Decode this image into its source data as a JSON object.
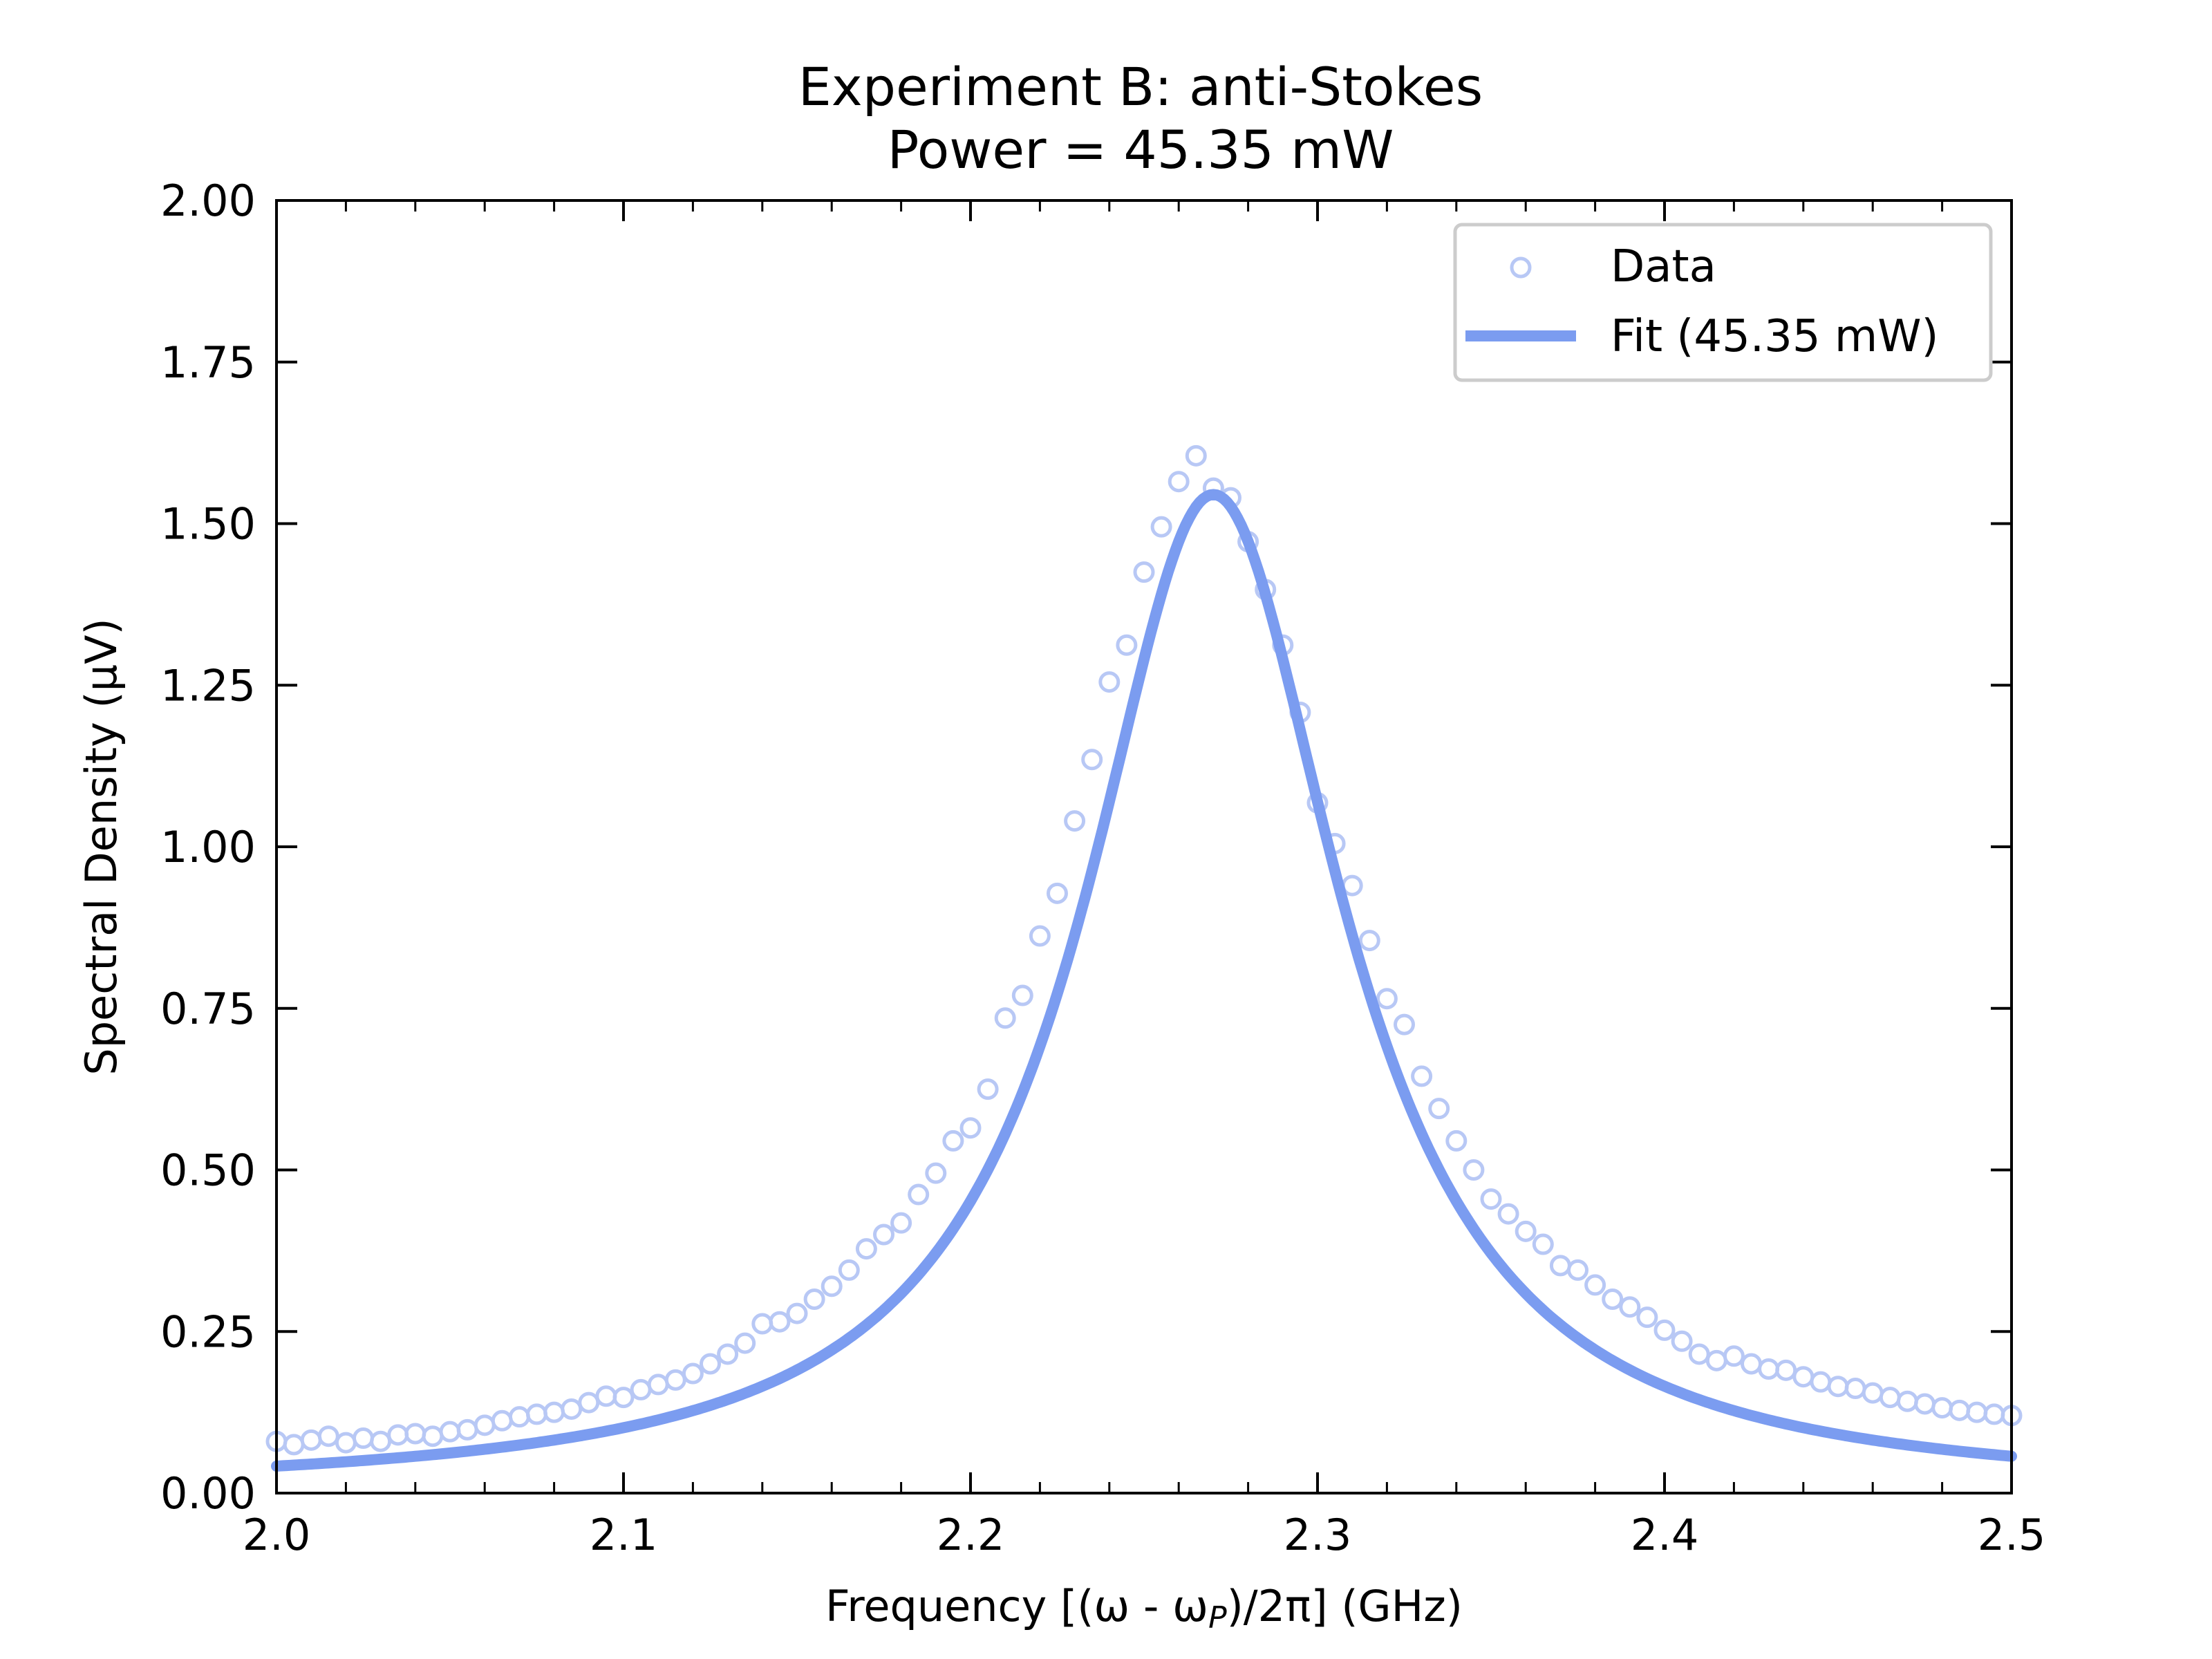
{
  "chart_data": {
    "type": "scatter",
    "title_line1": "Experiment B: anti-Stokes",
    "title_line2": "Power = 45.35 mW",
    "xlabel": "Frequency [(ω - ω",
    "xlabel_sub": "P",
    "xlabel_tail": ")/2π] (GHz)",
    "ylabel": "Spectral Density (μV)",
    "xlim": [
      2.0,
      2.5
    ],
    "ylim": [
      0.0,
      2.0
    ],
    "x_ticks": [
      "2.0",
      "2.1",
      "2.2",
      "2.3",
      "2.4",
      "2.5"
    ],
    "y_ticks": [
      "0.00",
      "0.25",
      "0.50",
      "0.75",
      "1.00",
      "1.25",
      "1.50",
      "1.75",
      "2.00"
    ],
    "legend_position": "top-right",
    "colors": {
      "data": "#b8c8f5",
      "fit": "#7b9cf0",
      "axes": "#000000"
    },
    "series": [
      {
        "name": "Data",
        "kind": "scatter",
        "points": [
          [
            2.0,
            0.08
          ],
          [
            2.005,
            0.075
          ],
          [
            2.01,
            0.082
          ],
          [
            2.015,
            0.088
          ],
          [
            2.02,
            0.078
          ],
          [
            2.025,
            0.085
          ],
          [
            2.03,
            0.08
          ],
          [
            2.035,
            0.09
          ],
          [
            2.04,
            0.092
          ],
          [
            2.045,
            0.088
          ],
          [
            2.05,
            0.095
          ],
          [
            2.055,
            0.098
          ],
          [
            2.06,
            0.105
          ],
          [
            2.065,
            0.112
          ],
          [
            2.07,
            0.118
          ],
          [
            2.075,
            0.122
          ],
          [
            2.08,
            0.125
          ],
          [
            2.085,
            0.13
          ],
          [
            2.09,
            0.14
          ],
          [
            2.095,
            0.15
          ],
          [
            2.1,
            0.148
          ],
          [
            2.105,
            0.16
          ],
          [
            2.11,
            0.168
          ],
          [
            2.115,
            0.175
          ],
          [
            2.12,
            0.185
          ],
          [
            2.125,
            0.2
          ],
          [
            2.13,
            0.215
          ],
          [
            2.135,
            0.232
          ],
          [
            2.14,
            0.262
          ],
          [
            2.145,
            0.265
          ],
          [
            2.15,
            0.278
          ],
          [
            2.155,
            0.3
          ],
          [
            2.16,
            0.32
          ],
          [
            2.165,
            0.345
          ],
          [
            2.17,
            0.378
          ],
          [
            2.175,
            0.4
          ],
          [
            2.18,
            0.418
          ],
          [
            2.185,
            0.462
          ],
          [
            2.19,
            0.495
          ],
          [
            2.195,
            0.545
          ],
          [
            2.2,
            0.565
          ],
          [
            2.205,
            0.625
          ],
          [
            2.21,
            0.735
          ],
          [
            2.215,
            0.77
          ],
          [
            2.22,
            0.862
          ],
          [
            2.225,
            0.928
          ],
          [
            2.23,
            1.04
          ],
          [
            2.235,
            1.135
          ],
          [
            2.24,
            1.255
          ],
          [
            2.245,
            1.312
          ],
          [
            2.25,
            1.425
          ],
          [
            2.255,
            1.495
          ],
          [
            2.26,
            1.565
          ],
          [
            2.265,
            1.605
          ],
          [
            2.27,
            1.555
          ],
          [
            2.275,
            1.54
          ],
          [
            2.28,
            1.472
          ],
          [
            2.285,
            1.398
          ],
          [
            2.29,
            1.312
          ],
          [
            2.295,
            1.208
          ],
          [
            2.3,
            1.068
          ],
          [
            2.305,
            1.005
          ],
          [
            2.31,
            0.94
          ],
          [
            2.315,
            0.855
          ],
          [
            2.32,
            0.765
          ],
          [
            2.325,
            0.725
          ],
          [
            2.33,
            0.645
          ],
          [
            2.335,
            0.595
          ],
          [
            2.34,
            0.545
          ],
          [
            2.345,
            0.5
          ],
          [
            2.35,
            0.455
          ],
          [
            2.355,
            0.432
          ],
          [
            2.36,
            0.405
          ],
          [
            2.365,
            0.385
          ],
          [
            2.37,
            0.352
          ],
          [
            2.375,
            0.345
          ],
          [
            2.38,
            0.322
          ],
          [
            2.385,
            0.3
          ],
          [
            2.39,
            0.288
          ],
          [
            2.395,
            0.272
          ],
          [
            2.4,
            0.252
          ],
          [
            2.405,
            0.235
          ],
          [
            2.41,
            0.215
          ],
          [
            2.415,
            0.205
          ],
          [
            2.42,
            0.212
          ],
          [
            2.425,
            0.2
          ],
          [
            2.43,
            0.192
          ],
          [
            2.435,
            0.19
          ],
          [
            2.44,
            0.18
          ],
          [
            2.445,
            0.172
          ],
          [
            2.45,
            0.165
          ],
          [
            2.455,
            0.162
          ],
          [
            2.46,
            0.155
          ],
          [
            2.465,
            0.148
          ],
          [
            2.47,
            0.142
          ],
          [
            2.475,
            0.138
          ],
          [
            2.48,
            0.132
          ],
          [
            2.485,
            0.128
          ],
          [
            2.49,
            0.125
          ],
          [
            2.495,
            0.122
          ],
          [
            2.5,
            0.12
          ]
        ]
      },
      {
        "name": "Fit (45.35 mW)",
        "kind": "line",
        "model": "lorentzian",
        "center": 2.27,
        "amplitude": 1.545,
        "fwhm": 0.09
      }
    ]
  }
}
